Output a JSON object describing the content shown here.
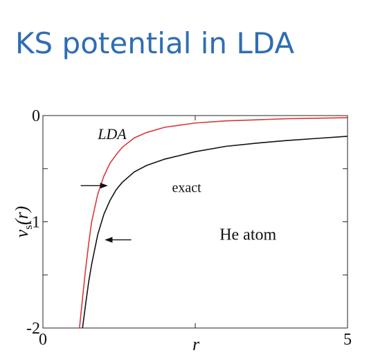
{
  "slide": {
    "title": "KS potential in LDA"
  },
  "chart_data": {
    "type": "line",
    "title": "",
    "xlabel": "r",
    "ylabel": "v_s(r)",
    "xlim": [
      0,
      5
    ],
    "ylim": [
      -2,
      0
    ],
    "x_ticks": [
      0,
      5
    ],
    "y_ticks": [
      0,
      -1,
      -2
    ],
    "x_tick_labels": [
      "0",
      "5"
    ],
    "y_tick_labels": [
      "0",
      "-1",
      "-2"
    ],
    "grid": false,
    "legend": "none",
    "series": [
      {
        "name": "LDA",
        "color": "#d9363a",
        "x": [
          0.6,
          0.65,
          0.7,
          0.75,
          0.8,
          0.9,
          1.0,
          1.1,
          1.2,
          1.3,
          1.5,
          1.7,
          2.0,
          2.5,
          3.0,
          3.5,
          4.0,
          4.5,
          5.0
        ],
        "y": [
          -2.0,
          -1.72,
          -1.45,
          -1.21,
          -1.0,
          -0.74,
          -0.57,
          -0.45,
          -0.37,
          -0.3,
          -0.21,
          -0.16,
          -0.11,
          -0.07,
          -0.05,
          -0.04,
          -0.03,
          -0.025,
          -0.02
        ]
      },
      {
        "name": "exact",
        "color": "#111111",
        "x": [
          0.65,
          0.7,
          0.75,
          0.8,
          0.9,
          1.0,
          1.1,
          1.2,
          1.3,
          1.5,
          1.7,
          2.0,
          2.5,
          3.0,
          3.5,
          4.0,
          4.5,
          5.0
        ],
        "y": [
          -2.0,
          -1.78,
          -1.57,
          -1.4,
          -1.12,
          -0.93,
          -0.8,
          -0.7,
          -0.63,
          -0.53,
          -0.47,
          -0.41,
          -0.34,
          -0.29,
          -0.26,
          -0.235,
          -0.215,
          -0.195
        ]
      }
    ],
    "annotations": [
      {
        "text": "LDA",
        "x": 0.9,
        "y": -0.22
      },
      {
        "text": "exact",
        "x": 2.12,
        "y": -0.72
      },
      {
        "text": "He atom",
        "x": 2.9,
        "y": -1.17
      }
    ],
    "arrows": [
      {
        "x_from": 0.62,
        "x_to": 1.05,
        "y": -0.66
      },
      {
        "x_from": 1.45,
        "x_to": 1.03,
        "y": -1.17
      }
    ]
  }
}
